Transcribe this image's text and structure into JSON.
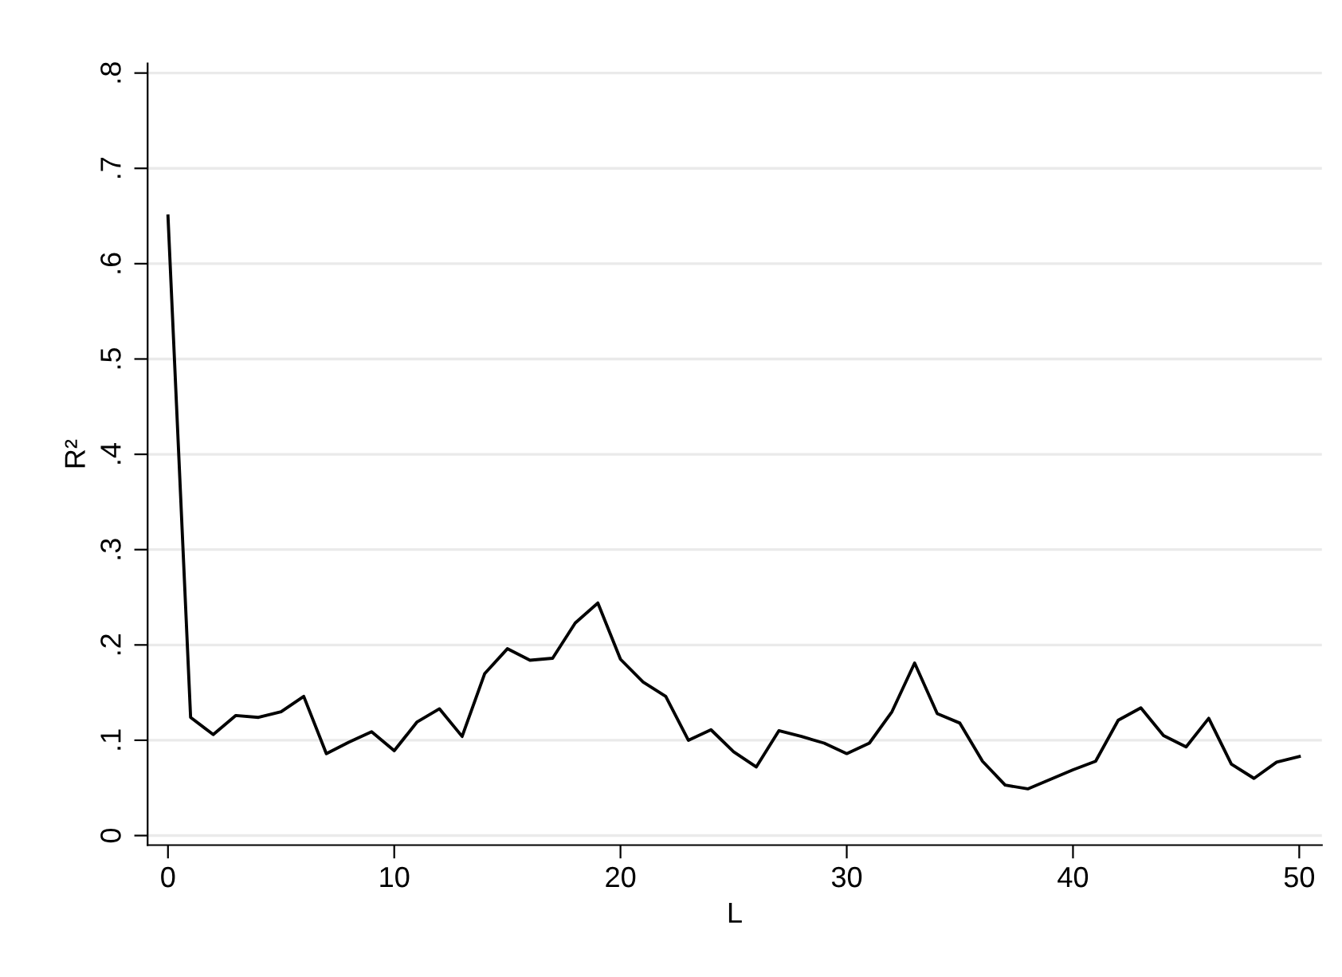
{
  "chart_data": {
    "type": "line",
    "xlabel": "L",
    "ylabel": "R²",
    "x": [
      0,
      1,
      2,
      3,
      4,
      5,
      6,
      7,
      8,
      9,
      10,
      11,
      12,
      13,
      14,
      15,
      16,
      17,
      18,
      19,
      20,
      21,
      22,
      23,
      24,
      25,
      26,
      27,
      28,
      29,
      30,
      31,
      32,
      33,
      34,
      35,
      36,
      37,
      38,
      39,
      40,
      41,
      42,
      43,
      44,
      45,
      46,
      47,
      48,
      49,
      50
    ],
    "series": [
      {
        "color": "#000000",
        "values": [
          0.65,
          0.124,
          0.106,
          0.126,
          0.124,
          0.13,
          0.146,
          0.086,
          0.098,
          0.109,
          0.089,
          0.119,
          0.133,
          0.104,
          0.17,
          0.196,
          0.184,
          0.186,
          0.223,
          0.244,
          0.185,
          0.161,
          0.146,
          0.1,
          0.111,
          0.088,
          0.072,
          0.11,
          0.104,
          0.097,
          0.086,
          0.097,
          0.13,
          0.181,
          0.128,
          0.118,
          0.078,
          0.053,
          0.049,
          0.059,
          0.069,
          0.078,
          0.121,
          0.134,
          0.105,
          0.093,
          0.123,
          0.075,
          0.06,
          0.077,
          0.083
        ]
      }
    ],
    "xlim": [
      -0.9,
      51
    ],
    "ylim": [
      -0.01,
      0.81
    ],
    "xticks": [
      0,
      10,
      20,
      30,
      40,
      50
    ],
    "yticks": [
      0,
      {
        "value": 0.1,
        "label": ".1"
      },
      {
        "value": 0.2,
        "label": ".2"
      },
      {
        "value": 0.3,
        "label": ".3"
      },
      {
        "value": 0.4,
        "label": ".4"
      },
      {
        "value": 0.5,
        "label": ".5"
      },
      {
        "value": 0.6,
        "label": ".6"
      },
      {
        "value": 0.7,
        "label": ".7"
      },
      {
        "value": 0.8,
        "label": ".8"
      }
    ],
    "grid": "y",
    "marker": "none",
    "line_style": "solid"
  }
}
